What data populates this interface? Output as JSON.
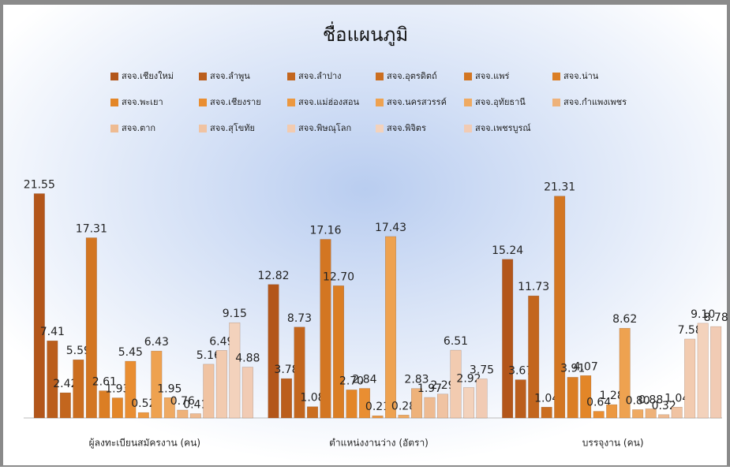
{
  "chart_data": {
    "type": "bar",
    "title": "ชื่อแผนภูมิ",
    "categories": [
      "ผู้ลงทะเบียนสมัครงาน (คน)",
      "ตำแหน่งงานว่าง (อัตรา)",
      "บรรจุงาน (คน)"
    ],
    "ylim": [
      0,
      25
    ],
    "series": [
      {
        "name": "สจจ.เชียงใหม่",
        "color": "#b3561a",
        "values": [
          21.55,
          12.82,
          15.24
        ],
        "value_labels": [
          "21.55",
          "12.82",
          "15.24"
        ]
      },
      {
        "name": "สจจ.ลำพูน",
        "color": "#bb5e1c",
        "values": [
          7.41,
          3.78,
          3.67
        ],
        "value_labels": [
          "7.41",
          "3.78",
          "3.67"
        ]
      },
      {
        "name": "สจจ.ลำปาง",
        "color": "#c3661e",
        "values": [
          2.42,
          8.73,
          11.73
        ],
        "value_labels": [
          "2.42",
          "8.73",
          "11.73"
        ]
      },
      {
        "name": "สจจ.อุตรดิตถ์",
        "color": "#cb6e20",
        "values": [
          5.59,
          1.08,
          1.04
        ],
        "value_labels": [
          "5.59",
          "1.08",
          "1.04"
        ]
      },
      {
        "name": "สจจ.แพร่",
        "color": "#d37622",
        "values": [
          17.31,
          17.16,
          21.31
        ],
        "value_labels": [
          "17.31",
          "17.16",
          "21.31"
        ]
      },
      {
        "name": "สจจ.น่าน",
        "color": "#db7e24",
        "values": [
          2.61,
          12.7,
          3.91
        ],
        "value_labels": [
          "2.61",
          "12.70",
          "3.91"
        ]
      },
      {
        "name": "สจจ.พะเยา",
        "color": "#e38628",
        "values": [
          1.93,
          2.7,
          4.07
        ],
        "value_labels": [
          "1.93",
          "2.70",
          "4.07"
        ]
      },
      {
        "name": "สจจ.เชียงราย",
        "color": "#e98e32",
        "values": [
          5.45,
          2.84,
          0.64
        ],
        "value_labels": [
          "5.45",
          "2.84",
          "0.64"
        ]
      },
      {
        "name": "สจจ.แม่ฮ่องสอน",
        "color": "#ec9840",
        "values": [
          0.52,
          0.21,
          1.28
        ],
        "value_labels": [
          "0.52",
          "0.21",
          "1.28"
        ]
      },
      {
        "name": "สจจ.นครสวรรค์",
        "color": "#eea250",
        "values": [
          6.43,
          17.43,
          8.62
        ],
        "value_labels": [
          "6.43",
          "17.43",
          "8.62"
        ]
      },
      {
        "name": "สจจ.อุทัยธานี",
        "color": "#efaa62",
        "values": [
          1.95,
          0.28,
          0.8
        ],
        "value_labels": [
          "1.95",
          "0.28",
          "0.80"
        ]
      },
      {
        "name": "สจจ.กำแพงเพชร",
        "color": "#eeb27a",
        "values": [
          0.76,
          2.83,
          0.88
        ],
        "value_labels": [
          "0.76",
          "2.83",
          "0.88"
        ]
      },
      {
        "name": "สจจ.ตาก",
        "color": "#eebb92",
        "values": [
          0.41,
          1.97,
          0.32
        ],
        "value_labels": [
          "0.41",
          "1.97",
          "0.32"
        ]
      },
      {
        "name": "สจจ.สุโขทัย",
        "color": "#f0c3a2",
        "values": [
          5.16,
          2.29,
          1.04
        ],
        "value_labels": [
          "5.16",
          "2.29",
          "1.04"
        ]
      },
      {
        "name": "สจจ.พิษณุโลก",
        "color": "#f2cbb0",
        "values": [
          6.49,
          6.51,
          7.58
        ],
        "value_labels": [
          "6.49",
          "6.51",
          "7.58"
        ]
      },
      {
        "name": "สจจ.พิจิตร",
        "color": "#f3d2bc",
        "values": [
          9.15,
          2.92,
          9.1
        ],
        "value_labels": [
          "9.15",
          "2.92",
          "9.10"
        ]
      },
      {
        "name": "สจจ.เพชรบูรณ์",
        "color": "#f1cbb4",
        "values": [
          4.88,
          3.75,
          8.78
        ],
        "value_labels": [
          "4.88",
          "3.75",
          "8.78"
        ]
      }
    ]
  }
}
